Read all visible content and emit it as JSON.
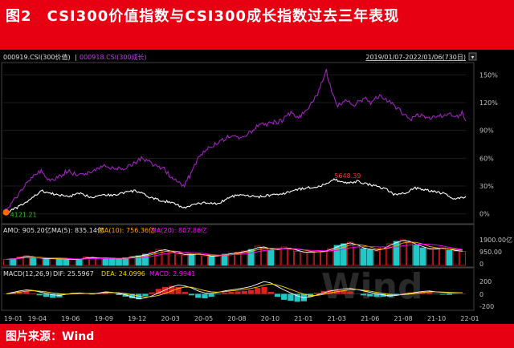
{
  "header": {
    "title": "图2　CSI300价值指数与CSI300成长指数过去三年表现"
  },
  "footer": {
    "source": "图片来源：Wind"
  },
  "colors": {
    "banner": "#e60012",
    "background": "#000000",
    "value_line": "#ffffff",
    "growth_line": "#a020c0",
    "ma5": "#ffffff",
    "ma10": "#ffa500",
    "ma20": "#ff00ff",
    "bar_up": "#e02020",
    "bar_down": "#20c8c8",
    "high_label": "#ff3030",
    "low_label": "#20c020"
  },
  "legend": {
    "value_series": "000919.CSI(300价值)",
    "separator": "|",
    "growth_series": "000918.CSI(300成长)",
    "date_range": "2019/01/07-2022/01/06(730日)"
  },
  "volume_panel": {
    "amo": "AMO: 905.20亿",
    "ma5": "MA(5): 835.14亿",
    "ma10": "MA(10): 756.36亿",
    "ma20": "MA(20): 807.86亿",
    "yticks": [
      "1900.00亿",
      "950.00",
      "0"
    ]
  },
  "macd_panel": {
    "macd": "MACD(12,26,9)",
    "dif": "DIF: 25.5967",
    "dea": "DEA: 24.0996",
    "macd_val": "MACD: 2.9941",
    "yticks": [
      "200",
      "0",
      "-200"
    ]
  },
  "watermark": "Wind",
  "chart_data": {
    "type": "line",
    "x_ticks": [
      "19-01",
      "19-04",
      "19-06",
      "19-09",
      "19-12",
      "20-03",
      "20-05",
      "20-08",
      "20-10",
      "21-01",
      "21-03",
      "21-06",
      "21-08",
      "21-10",
      "22-01"
    ],
    "x_range": [
      0,
      730
    ],
    "ylim": [
      -8,
      158
    ],
    "y_ticks": [
      {
        "label": "0%",
        "value": 0
      },
      {
        "label": "30%",
        "value": 30
      },
      {
        "label": "60%",
        "value": 60
      },
      {
        "label": "90%",
        "value": 90
      },
      {
        "label": "120%",
        "value": 120
      },
      {
        "label": "150%",
        "value": 150
      }
    ],
    "annotations": {
      "high": {
        "label": "5648.39",
        "x": 520,
        "y": 37
      },
      "low": {
        "label": "4121.21",
        "x": 2,
        "y": 0
      }
    },
    "series": [
      {
        "name": "000919.CSI(300价值)",
        "points": [
          [
            0,
            0
          ],
          [
            20,
            6
          ],
          [
            40,
            14
          ],
          [
            60,
            25
          ],
          [
            75,
            22
          ],
          [
            90,
            20
          ],
          [
            105,
            19
          ],
          [
            120,
            22
          ],
          [
            140,
            18
          ],
          [
            155,
            21
          ],
          [
            175,
            20
          ],
          [
            190,
            23
          ],
          [
            210,
            25
          ],
          [
            230,
            18
          ],
          [
            250,
            14
          ],
          [
            270,
            12
          ],
          [
            285,
            6
          ],
          [
            300,
            10
          ],
          [
            320,
            12
          ],
          [
            340,
            11
          ],
          [
            360,
            19
          ],
          [
            380,
            20
          ],
          [
            400,
            18
          ],
          [
            420,
            20
          ],
          [
            440,
            21
          ],
          [
            460,
            26
          ],
          [
            480,
            28
          ],
          [
            500,
            30
          ],
          [
            515,
            33
          ],
          [
            520,
            37
          ],
          [
            530,
            36
          ],
          [
            545,
            33
          ],
          [
            560,
            35
          ],
          [
            575,
            32
          ],
          [
            590,
            30
          ],
          [
            605,
            26
          ],
          [
            620,
            20
          ],
          [
            635,
            23
          ],
          [
            650,
            28
          ],
          [
            665,
            26
          ],
          [
            680,
            24
          ],
          [
            695,
            22
          ],
          [
            710,
            16
          ],
          [
            720,
            17
          ],
          [
            730,
            19
          ]
        ]
      },
      {
        "name": "000918.CSI(300成长)",
        "points": [
          [
            0,
            0
          ],
          [
            15,
            12
          ],
          [
            30,
            28
          ],
          [
            45,
            40
          ],
          [
            60,
            46
          ],
          [
            70,
            36
          ],
          [
            85,
            38
          ],
          [
            100,
            46
          ],
          [
            120,
            42
          ],
          [
            140,
            46
          ],
          [
            160,
            52
          ],
          [
            180,
            48
          ],
          [
            200,
            52
          ],
          [
            220,
            60
          ],
          [
            240,
            52
          ],
          [
            255,
            48
          ],
          [
            270,
            36
          ],
          [
            285,
            30
          ],
          [
            295,
            42
          ],
          [
            310,
            62
          ],
          [
            325,
            72
          ],
          [
            340,
            78
          ],
          [
            355,
            83
          ],
          [
            370,
            82
          ],
          [
            385,
            86
          ],
          [
            400,
            94
          ],
          [
            420,
            98
          ],
          [
            440,
            100
          ],
          [
            455,
            110
          ],
          [
            465,
            104
          ],
          [
            480,
            112
          ],
          [
            495,
            128
          ],
          [
            505,
            145
          ],
          [
            510,
            154
          ],
          [
            515,
            140
          ],
          [
            520,
            130
          ],
          [
            528,
            117
          ],
          [
            540,
            122
          ],
          [
            555,
            118
          ],
          [
            570,
            125
          ],
          [
            580,
            120
          ],
          [
            595,
            128
          ],
          [
            610,
            120
          ],
          [
            625,
            112
          ],
          [
            640,
            102
          ],
          [
            655,
            106
          ],
          [
            670,
            104
          ],
          [
            685,
            105
          ],
          [
            700,
            108
          ],
          [
            715,
            104
          ],
          [
            725,
            110
          ],
          [
            730,
            100
          ]
        ]
      }
    ],
    "volume_series": {
      "name": "AMO",
      "unit": "亿",
      "ylim": [
        0,
        1900
      ],
      "values": [
        380,
        420,
        520,
        600,
        480,
        450,
        400,
        430,
        420,
        380,
        360,
        400,
        520,
        480,
        450,
        420,
        460,
        380,
        480,
        560,
        600,
        700,
        820,
        1000,
        950,
        820,
        720,
        640,
        680,
        720,
        600,
        560,
        620,
        700,
        760,
        820,
        900,
        1000,
        1200,
        1100,
        950,
        980,
        1150,
        1000,
        880,
        800,
        820,
        860,
        900,
        1050,
        1250,
        1350,
        1450,
        1150,
        1050,
        980,
        900,
        1150,
        1350,
        1500,
        1600,
        1400,
        1250,
        1100,
        1000,
        1050,
        1100,
        950,
        900,
        880
      ]
    },
    "macd_series": {
      "name": "MACD(12,26,9)",
      "ylim": [
        -300,
        300
      ],
      "dif": [
        0,
        30,
        60,
        80,
        70,
        40,
        10,
        -20,
        -30,
        -10,
        10,
        20,
        10,
        0,
        20,
        40,
        30,
        10,
        -20,
        -60,
        -100,
        -80,
        -40,
        20,
        80,
        140,
        180,
        160,
        120,
        60,
        20,
        10,
        30,
        60,
        80,
        100,
        120,
        150,
        200,
        250,
        220,
        150,
        80,
        20,
        -40,
        -80,
        -60,
        -20,
        20,
        60,
        80,
        100,
        110,
        90,
        60,
        30,
        0,
        -20,
        -40,
        -30,
        -10,
        10,
        30,
        50,
        60,
        40,
        30,
        20,
        25,
        26
      ],
      "dea": [
        0,
        15,
        35,
        55,
        65,
        55,
        40,
        20,
        5,
        -5,
        0,
        8,
        10,
        6,
        12,
        24,
        28,
        22,
        8,
        -15,
        -45,
        -60,
        -55,
        -30,
        10,
        60,
        110,
        140,
        135,
        100,
        65,
        40,
        35,
        45,
        60,
        75,
        90,
        110,
        140,
        180,
        200,
        180,
        140,
        90,
        40,
        -5,
        -30,
        -30,
        -10,
        20,
        45,
        65,
        85,
        90,
        75,
        55,
        30,
        10,
        -10,
        -20,
        -18,
        -5,
        10,
        28,
        42,
        42,
        38,
        30,
        27,
        24
      ]
    }
  }
}
